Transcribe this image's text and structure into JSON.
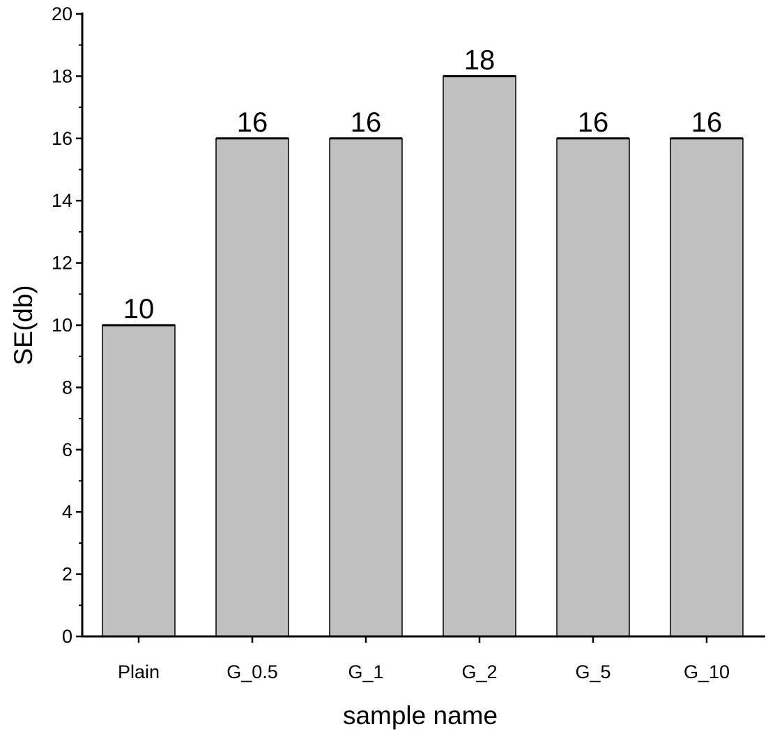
{
  "chart_data": {
    "type": "bar",
    "title": "",
    "xlabel": "sample name",
    "ylabel": "SE(db)",
    "categories": [
      "Plain",
      "G_0.5",
      "G_1",
      "G_2",
      "G_5",
      "G_10"
    ],
    "values": [
      10,
      16,
      16,
      18,
      16,
      16
    ],
    "data_labels": [
      "10",
      "16",
      "16",
      "18",
      "16",
      "16"
    ],
    "ylim": [
      0,
      20
    ],
    "yticks": [
      "0",
      "2",
      "4",
      "6",
      "8",
      "10",
      "12",
      "14",
      "16",
      "18",
      "20"
    ],
    "grid": false,
    "legend": "none",
    "colors": {
      "bar_fill": "#c0c0c0",
      "bar_stroke": "#000000",
      "axis": "#000000",
      "text": "#000000"
    }
  }
}
